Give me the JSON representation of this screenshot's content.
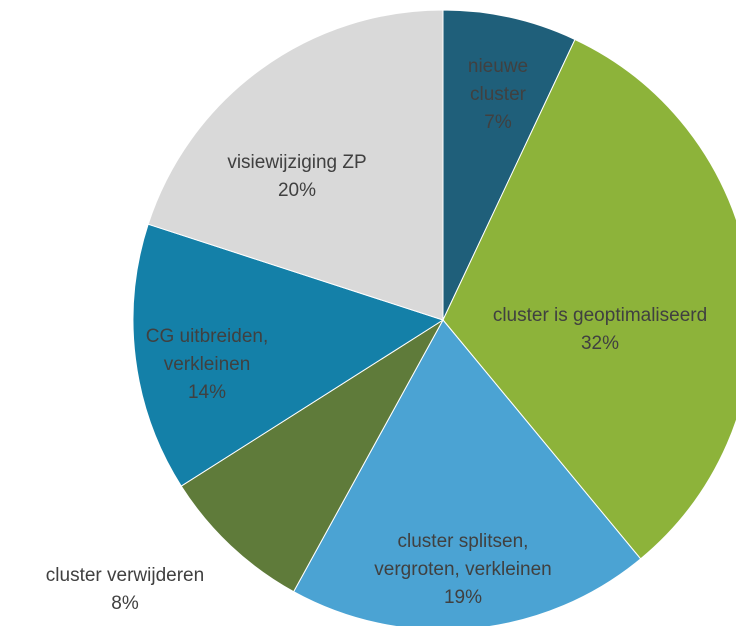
{
  "chart_data": {
    "type": "pie",
    "categories": [
      [
        "nieuwe",
        "cluster"
      ],
      [
        "cluster is geoptimaliseerd"
      ],
      [
        "cluster splitsen,",
        "vergroten, verkleinen"
      ],
      [
        "cluster verwijderen"
      ],
      [
        "CG uitbreiden,",
        "verkleinen"
      ],
      [
        "visiewijziging ZP"
      ]
    ],
    "values": [
      7,
      32,
      19,
      8,
      14,
      20
    ],
    "value_labels": [
      "7%",
      "32%",
      "19%",
      "8%",
      "14%",
      "20%"
    ],
    "colors": [
      "#1f5f7a",
      "#8db33a",
      "#4ba3d3",
      "#5f7b3a",
      "#1480a8",
      "#d9d9d9"
    ]
  }
}
